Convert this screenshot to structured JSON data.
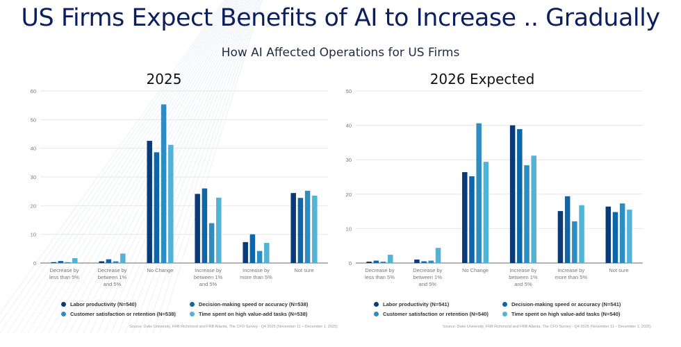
{
  "slide": {
    "title": "US Firms Expect Benefits of AI to Increase .. Gradually",
    "subtitle": "How AI Affected Operations for US Firms"
  },
  "colors": {
    "title": "#0b1f5c",
    "series": [
      "#0a3a78",
      "#0e65a8",
      "#2e8cc0",
      "#52b3d6"
    ],
    "grid": "#e6e6e6",
    "axis": "#888888",
    "tick_text": "#777777"
  },
  "chart_data": [
    {
      "type": "bar",
      "title": "2025",
      "xlabel": "",
      "ylabel": "",
      "ylim": [
        0,
        60
      ],
      "yticks": [
        0,
        10,
        20,
        30,
        40,
        50,
        60
      ],
      "grid": true,
      "legend_position": "bottom",
      "categories": [
        [
          "Decrease by",
          "less than 5%"
        ],
        [
          "Decrease by",
          "between 1%",
          "and 5%"
        ],
        [
          "No Change"
        ],
        [
          "Increase by",
          "between 1%",
          "and 5%"
        ],
        [
          "Increase by",
          "more than 5%"
        ],
        [
          "Not sure"
        ]
      ],
      "series": [
        {
          "name": "Labor productivity (N=540)",
          "values": [
            0.3,
            0.6,
            42.6,
            24.1,
            7.3,
            24.4
          ]
        },
        {
          "name": "Decision-making speed or accuracy (N=538)",
          "values": [
            0.7,
            1.3,
            38.6,
            26.0,
            10.0,
            22.7
          ]
        },
        {
          "name": "Customer satisfaction or retention (N=538)",
          "values": [
            0.3,
            0.6,
            55.3,
            13.9,
            4.2,
            25.2
          ]
        },
        {
          "name": "Time spent on high value-add tasks (N=538)",
          "values": [
            1.7,
            3.3,
            41.2,
            22.8,
            7.0,
            23.5
          ]
        }
      ],
      "source": "Source: Duke University, FRB Richmond and FRB Atlanta, The CFO Survey - Q4 2025 (November 11 – December 1, 2025)"
    },
    {
      "type": "bar",
      "title": "2026 Expected",
      "xlabel": "",
      "ylabel": "",
      "ylim": [
        0,
        50
      ],
      "yticks": [
        0,
        10,
        20,
        30,
        40,
        50
      ],
      "grid": true,
      "legend_position": "bottom",
      "categories": [
        [
          "Decrease by",
          "less than 5%"
        ],
        [
          "Decrease by",
          "between 1%",
          "and 5%"
        ],
        [
          "No Change"
        ],
        [
          "Increase by",
          "between 1%",
          "and 5%"
        ],
        [
          "Increase by",
          "more than 5%"
        ],
        [
          "Not sure"
        ]
      ],
      "series": [
        {
          "name": "Labor productivity (N=541)",
          "values": [
            0.4,
            1.0,
            26.4,
            40.0,
            15.1,
            16.4
          ]
        },
        {
          "name": "Decision-making speed or accuracy (N=541)",
          "values": [
            0.7,
            0.5,
            25.2,
            38.9,
            19.4,
            14.8
          ]
        },
        {
          "name": "Customer satisfaction or retention (N=540)",
          "values": [
            0.4,
            0.7,
            40.6,
            28.4,
            12.1,
            17.3
          ]
        },
        {
          "name": "Time spent on high value-add tasks (N=540)",
          "values": [
            2.4,
            4.4,
            29.4,
            31.2,
            16.8,
            15.5
          ]
        }
      ],
      "source": "Source: Duke University, FRB Richmond and FRB Atlanta, The CFO Survey - Q4 2025 (November 11 – December 1, 2025)"
    }
  ]
}
